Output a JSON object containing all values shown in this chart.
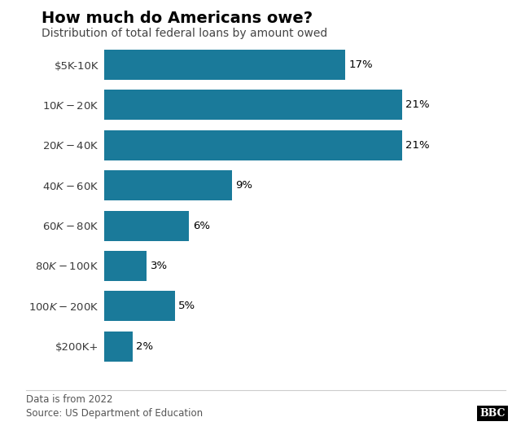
{
  "title": "How much do Americans owe?",
  "subtitle": "Distribution of total federal loans by amount owed",
  "categories": [
    "$5K-10K",
    "$10K-$20K",
    "$20K-$40K",
    "$40K-$60K",
    "$60K-$80K",
    "$80K-$100K",
    "$100K-$200K",
    "$200K+"
  ],
  "values": [
    17,
    21,
    21,
    9,
    6,
    3,
    5,
    2
  ],
  "bar_color": "#1a7a9a",
  "background_color": "#ffffff",
  "text_color": "#000000",
  "label_color": "#3a3a3a",
  "footer_line1": "Data is from 2022",
  "footer_line2": "Source: US Department of Education",
  "bbc_logo": "BBC",
  "xlim": [
    0,
    25
  ],
  "title_fontsize": 14,
  "subtitle_fontsize": 10,
  "tick_fontsize": 9.5,
  "value_fontsize": 9.5,
  "footer_fontsize": 8.5
}
